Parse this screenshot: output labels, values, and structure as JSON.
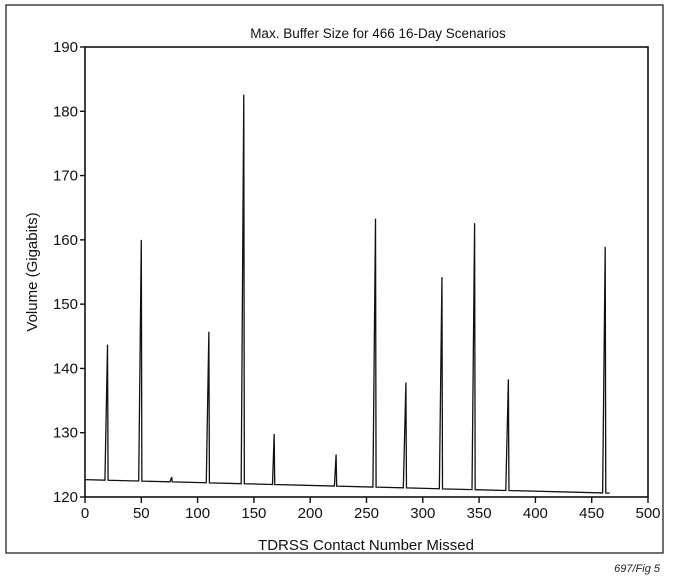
{
  "figure_note": "697/Fig 5",
  "chart_data": {
    "type": "line",
    "title": "Max. Buffer Size for 466 16-Day Scenarios",
    "xlabel": "TDRSS Contact Number Missed",
    "ylabel": "Volume (Gigabits)",
    "xlim": [
      0,
      500
    ],
    "ylim": [
      120,
      190
    ],
    "xticks": [
      0,
      50,
      100,
      150,
      200,
      250,
      300,
      350,
      400,
      450,
      500
    ],
    "yticks": [
      120,
      130,
      140,
      150,
      160,
      170,
      180,
      190
    ],
    "grid": false,
    "legend": "none",
    "line_color": "#111111",
    "baseline_start": 122.7,
    "baseline_end": 120.6,
    "x_end": 466,
    "spikes": [
      {
        "x": 20,
        "y": 143.7
      },
      {
        "x": 50,
        "y": 160.0
      },
      {
        "x": 77,
        "y": 123.1
      },
      {
        "x": 110,
        "y": 145.7
      },
      {
        "x": 141,
        "y": 182.6
      },
      {
        "x": 168,
        "y": 129.8
      },
      {
        "x": 223,
        "y": 126.6
      },
      {
        "x": 258,
        "y": 163.3
      },
      {
        "x": 285,
        "y": 137.8
      },
      {
        "x": 317,
        "y": 154.2
      },
      {
        "x": 346,
        "y": 162.6
      },
      {
        "x": 376,
        "y": 138.3
      },
      {
        "x": 462,
        "y": 158.9
      }
    ]
  }
}
